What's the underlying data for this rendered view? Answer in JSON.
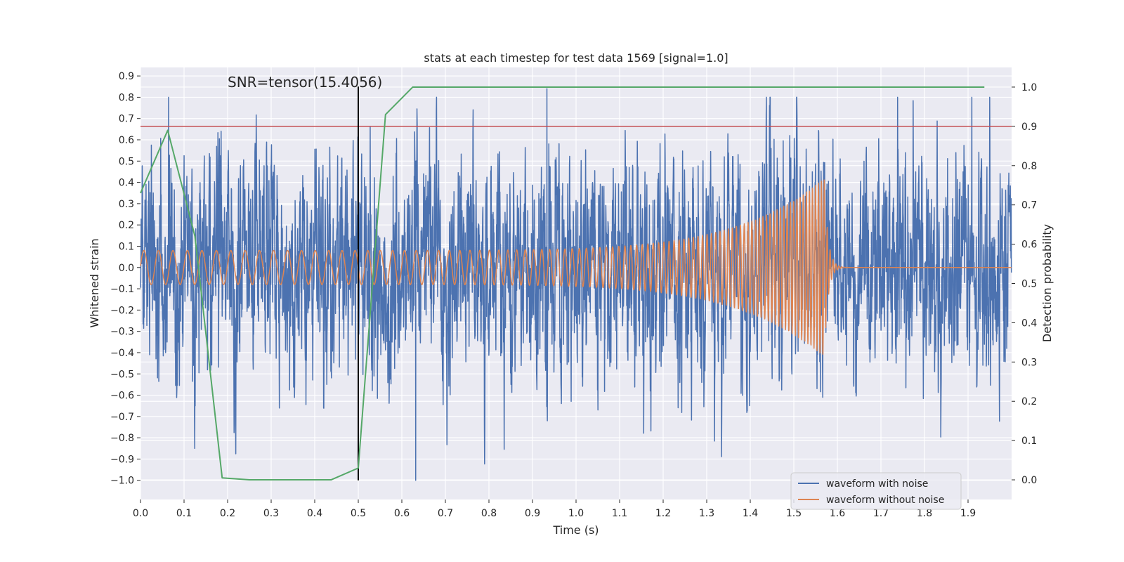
{
  "chart_data": {
    "type": "line",
    "title": "stats at each timestep for test data 1569 [signal=1.0]",
    "xlabel": "Time (s)",
    "ylabel": "Whitened strain",
    "y2label": "Detection probability",
    "xlim": [
      0.0,
      2.0
    ],
    "ylim": [
      -1.09,
      0.94
    ],
    "y2lim": [
      -0.05,
      1.05
    ],
    "xticks": [
      "0.0",
      "0.1",
      "0.2",
      "0.3",
      "0.4",
      "0.5",
      "0.6",
      "0.7",
      "0.8",
      "0.9",
      "1.0",
      "1.1",
      "1.2",
      "1.3",
      "1.4",
      "1.5",
      "1.6",
      "1.7",
      "1.8",
      "1.9"
    ],
    "yticks": [
      "0.9",
      "0.8",
      "0.7",
      "0.6",
      "0.5",
      "0.4",
      "0.3",
      "0.2",
      "0.1",
      "0.0",
      "−0.1",
      "−0.2",
      "−0.3",
      "−0.4",
      "−0.5",
      "−0.6",
      "−0.7",
      "−0.8",
      "−0.9",
      "−1.0"
    ],
    "y2ticks": [
      "1.0",
      "0.9",
      "0.8",
      "0.7",
      "0.6",
      "0.5",
      "0.4",
      "0.3",
      "0.2",
      "0.1",
      "0.0"
    ],
    "grid": true,
    "legend_position": "lower-right",
    "annotation": "SNR=tensor(15.4056)",
    "series": [
      {
        "name": "waveform with noise",
        "axis": "left",
        "color": "#4c72b0",
        "kind": "noise",
        "stats": {
          "std": 0.25,
          "max": 0.84,
          "max_at": 0.933,
          "min": -1.0,
          "min_at": 0.632
        }
      },
      {
        "name": "waveform without noise",
        "axis": "left",
        "color": "#dd8452",
        "kind": "chirp",
        "stats": {
          "f0_hz": 30,
          "f1_hz": 150,
          "start_amp": 0.08,
          "peak_amp": 0.42,
          "merger_s": 1.57
        }
      },
      {
        "axis": "right",
        "color": "#55a868",
        "kind": "detection_probability",
        "x": [
          0.0,
          0.0625,
          0.125,
          0.1875,
          0.25,
          0.4375,
          0.5,
          0.5625,
          0.625,
          1.9375
        ],
        "values": [
          0.73,
          0.89,
          0.62,
          0.005,
          0.0,
          0.0,
          0.03,
          0.93,
          1.0,
          1.0
        ]
      }
    ],
    "threshold": {
      "axis": "right",
      "value": 0.9,
      "color": "#c44e52"
    },
    "marker_line": {
      "x": 0.5,
      "y_range": [
        -1.0,
        0.85
      ],
      "color": "#000000"
    }
  }
}
